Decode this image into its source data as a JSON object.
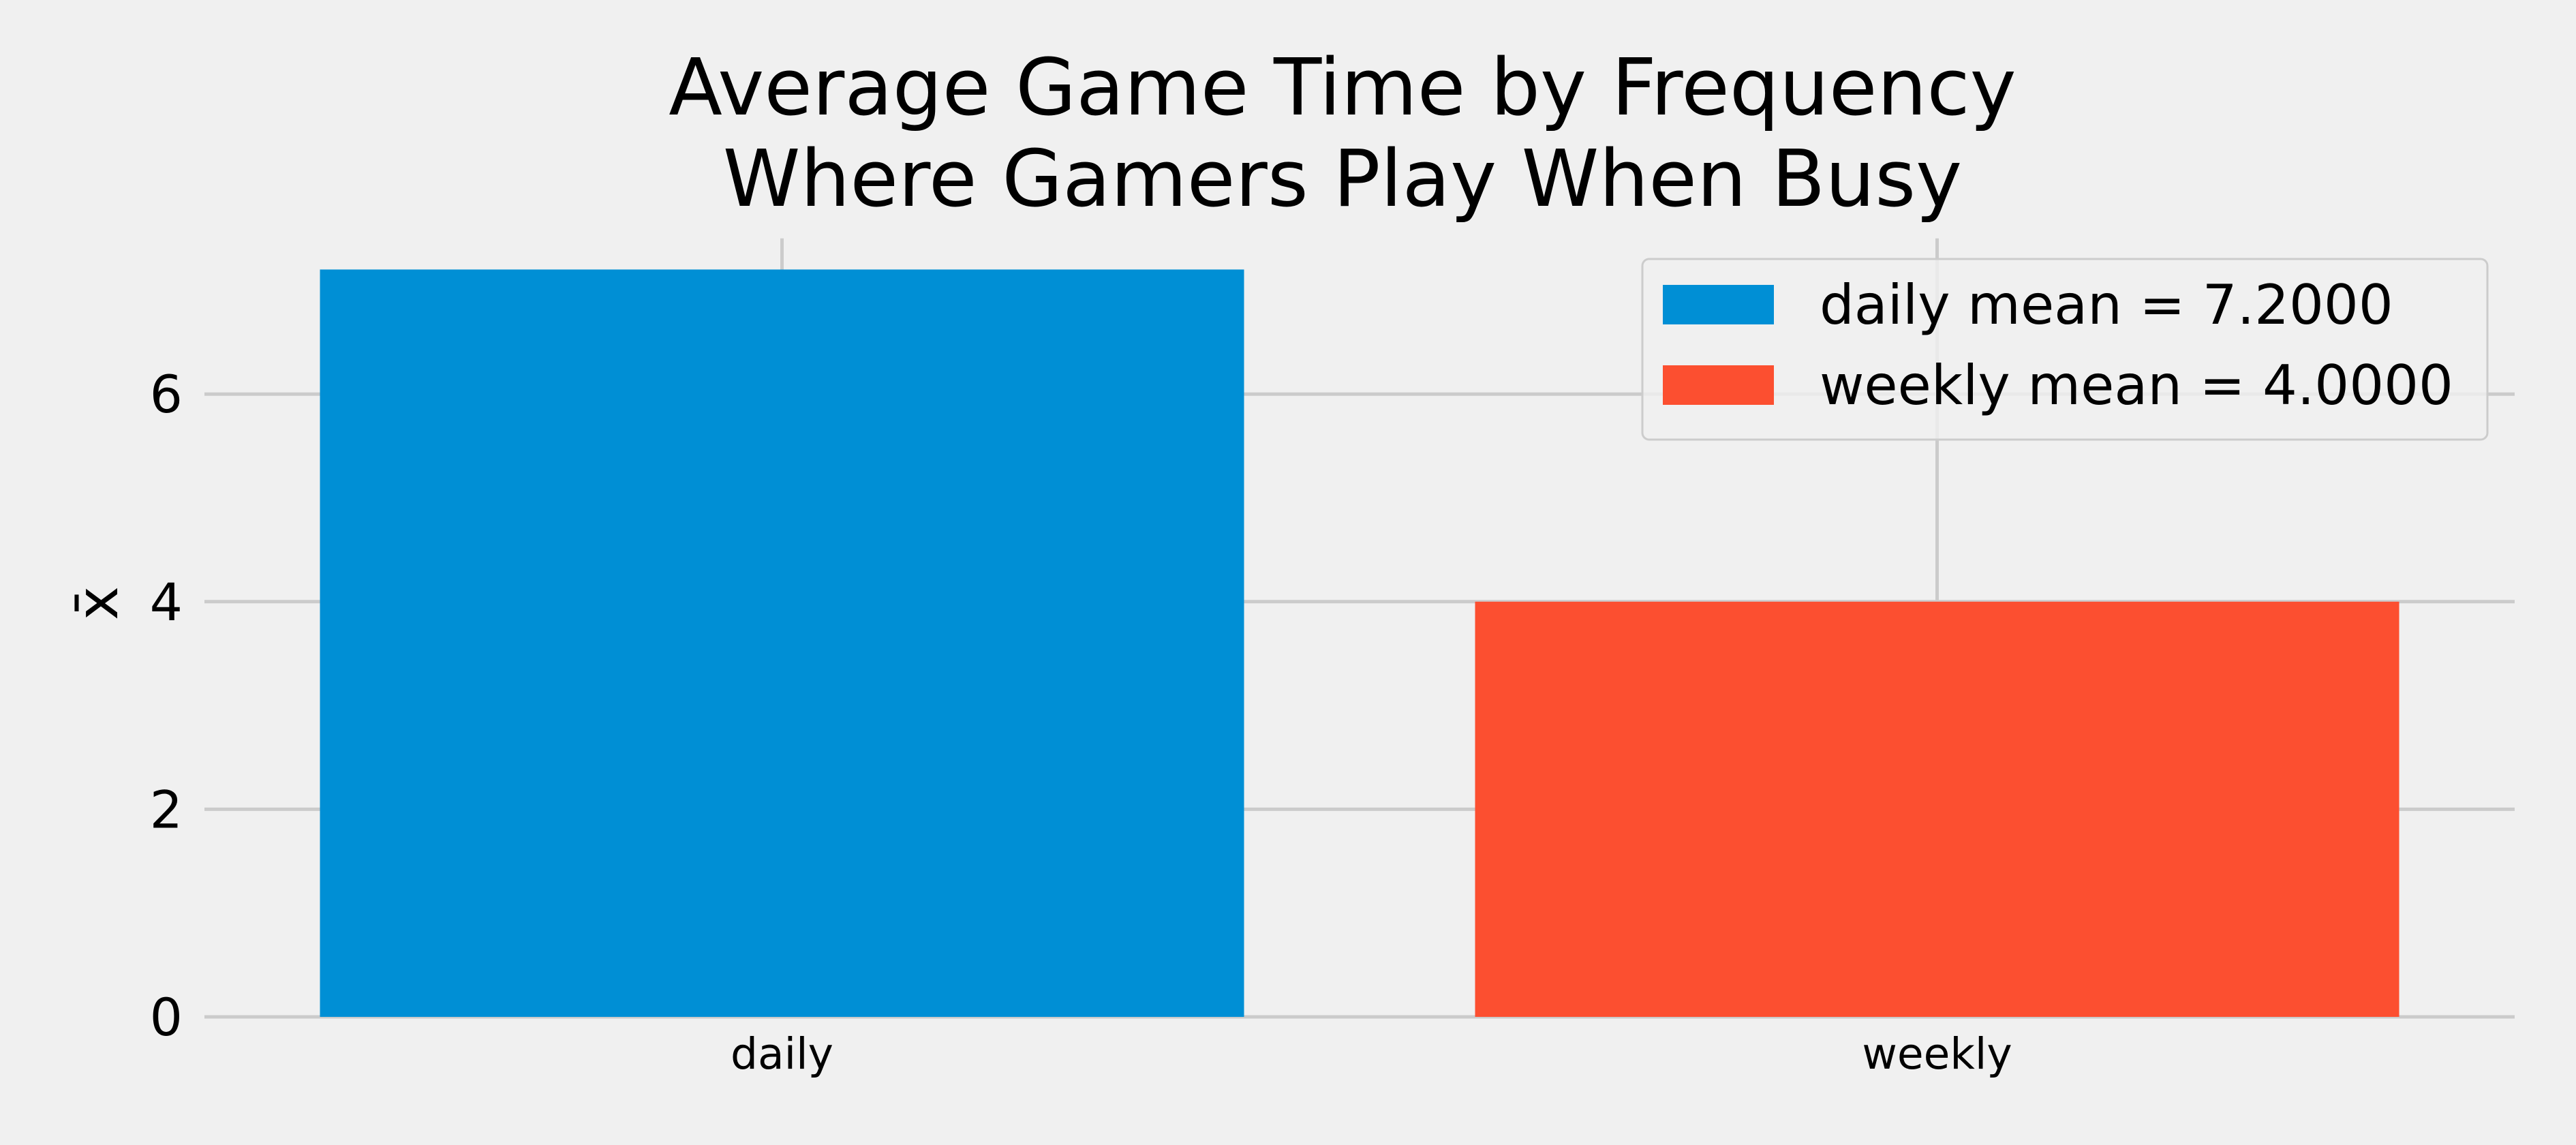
{
  "chart_data": {
    "type": "bar",
    "title_lines": [
      "Average Game Time by Frequency",
      "Where Gamers Play When Busy"
    ],
    "xlabel": "",
    "ylabel": "x̄",
    "categories": [
      "daily",
      "weekly"
    ],
    "values": [
      7.2,
      4.0
    ],
    "colors": [
      "#008fd5",
      "#fc4f30"
    ],
    "ylim": [
      0,
      7.5
    ],
    "yticks": [
      0,
      2,
      4,
      6
    ],
    "ytick_labels": [
      "0",
      "2",
      "4",
      "6"
    ],
    "grid": true,
    "legend": {
      "position": "upper right",
      "entries": [
        {
          "label": "daily mean = 7.2000",
          "color": "#008fd5"
        },
        {
          "label": "weekly mean = 4.0000",
          "color": "#fc4f30"
        }
      ]
    },
    "colors_theme": {
      "background": "#f0f0f0",
      "grid": "#cbcbcb",
      "legend_border": "#cccccc"
    }
  }
}
